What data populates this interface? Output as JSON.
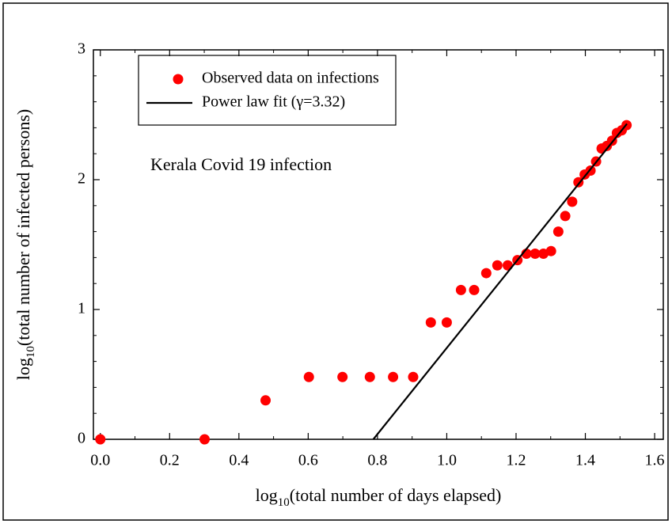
{
  "chart_data": {
    "type": "scatter",
    "annotation": "Kerala Covid 19 infection",
    "xlabel": "log10(total number of days elapsed)",
    "ylabel": "log10(total number of infected persons)",
    "xlim": [
      -0.02,
      1.625
    ],
    "ylim": [
      0,
      3
    ],
    "xticks": [
      {
        "value": 0,
        "label": "0.0"
      },
      0.2,
      0.4,
      0.6,
      0.8,
      {
        "value": 1,
        "label": "1.0"
      },
      1.2,
      1.4,
      1.6
    ],
    "yticks": [
      0,
      1,
      2,
      3
    ],
    "legend": "upper left",
    "series": [
      {
        "name": "Observed data on infections",
        "type": "scatter",
        "color": "#ff0000",
        "x": [
          0,
          0.301,
          0.477,
          0.602,
          0.699,
          0.778,
          0.845,
          0.903,
          0.954,
          1.0,
          1.041,
          1.079,
          1.114,
          1.146,
          1.176,
          1.204,
          1.23,
          1.255,
          1.279,
          1.301,
          1.322,
          1.342,
          1.362,
          1.38,
          1.398,
          1.415,
          1.431,
          1.447,
          1.462,
          1.477,
          1.491,
          1.505,
          1.519
        ],
        "values": [
          0,
          0,
          0.3,
          0.48,
          0.48,
          0.48,
          0.48,
          0.48,
          0.9,
          0.9,
          1.15,
          1.15,
          1.28,
          1.34,
          1.34,
          1.38,
          1.43,
          1.43,
          1.43,
          1.45,
          1.6,
          1.72,
          1.83,
          1.98,
          2.04,
          2.07,
          2.14,
          2.24,
          2.26,
          2.3,
          2.36,
          2.38,
          2.42
        ]
      },
      {
        "name": "Power law fit (γ=3.32)",
        "type": "line",
        "color": "#000000",
        "x": [
          0.788,
          1.52
        ],
        "values": [
          0,
          2.43
        ]
      }
    ]
  }
}
